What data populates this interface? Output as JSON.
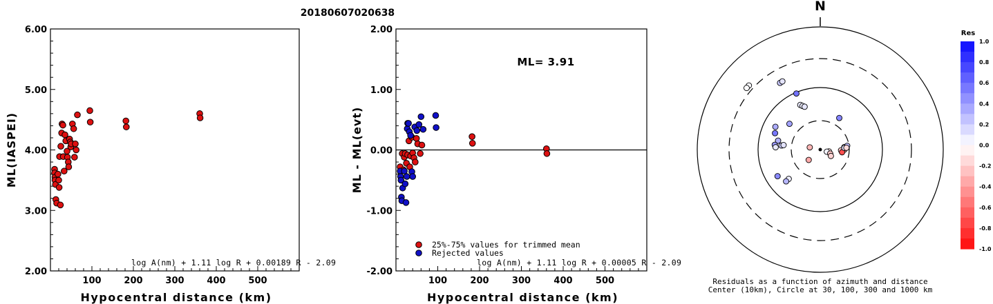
{
  "title": "20180607020638",
  "colors": {
    "red": "#dd1111",
    "blue": "#1010c8",
    "axis": "#000000"
  },
  "chart_data": [
    {
      "type": "scatter",
      "panel": "ml-vs-distance",
      "ylabel": "ML(IASPEI)",
      "xlabel": "Hypocentral distance (km)",
      "xlim": [
        0,
        600
      ],
      "ylim": [
        2.0,
        6.0
      ],
      "x_ticks": [
        "100",
        "200",
        "300",
        "400",
        "500"
      ],
      "y_ticks": [
        "2.00",
        "3.00",
        "4.00",
        "5.00",
        "6.00"
      ],
      "formula": "log A(nm) + 1.11 log R + 0.00189 R - 2.09",
      "series": [
        {
          "color": "red",
          "points": [
            [
              10,
              3.68
            ],
            [
              10,
              3.62
            ],
            [
              11,
              3.55
            ],
            [
              11,
              3.5
            ],
            [
              12,
              3.43
            ],
            [
              13,
              3.18
            ],
            [
              15,
              3.12
            ],
            [
              18,
              3.6
            ],
            [
              20,
              3.5
            ],
            [
              21,
              3.38
            ],
            [
              22,
              3.89
            ],
            [
              24,
              3.09
            ],
            [
              25,
              4.06
            ],
            [
              27,
              4.28
            ],
            [
              28,
              4.43
            ],
            [
              30,
              4.41
            ],
            [
              31,
              3.89
            ],
            [
              33,
              3.65
            ],
            [
              35,
              4.25
            ],
            [
              37,
              4.15
            ],
            [
              40,
              3.98
            ],
            [
              41,
              3.88
            ],
            [
              43,
              3.8
            ],
            [
              44,
              3.72
            ],
            [
              46,
              4.18
            ],
            [
              48,
              4.13
            ],
            [
              49,
              4.05
            ],
            [
              50,
              4.1
            ],
            [
              53,
              4.43
            ],
            [
              56,
              4.35
            ],
            [
              58,
              3.88
            ],
            [
              60,
              4.1
            ],
            [
              62,
              4.0
            ],
            [
              65,
              4.58
            ],
            [
              95,
              4.65
            ],
            [
              96,
              4.46
            ],
            [
              182,
              4.48
            ],
            [
              183,
              4.38
            ],
            [
              360,
              4.6
            ],
            [
              361,
              4.53
            ]
          ]
        }
      ]
    },
    {
      "type": "scatter",
      "panel": "residual-vs-distance",
      "ylabel": "ML - ML(evt)",
      "xlabel": "Hypocentral distance (km)",
      "xlim": [
        0,
        600
      ],
      "ylim": [
        -2.0,
        2.0
      ],
      "x_ticks": [
        "100",
        "200",
        "300",
        "400",
        "500"
      ],
      "y_ticks": [
        "-2.00",
        "-1.00",
        "0.00",
        "1.00",
        "2.00"
      ],
      "annotation": "ML= 3.91",
      "formula": "log A(nm) + 1.11 log R + 0.00005 R - 2.09",
      "legend": [
        "25%-75% values for trimmed mean",
        "Rejected values"
      ],
      "series": [
        {
          "name": "25%-75% values for trimmed mean",
          "color": "red",
          "points": [
            [
              10,
              -0.28
            ],
            [
              15,
              -0.06
            ],
            [
              18,
              -0.33
            ],
            [
              20,
              -0.12
            ],
            [
              22,
              -0.06
            ],
            [
              25,
              -0.22
            ],
            [
              28,
              -0.08
            ],
            [
              31,
              0.15
            ],
            [
              33,
              -0.28
            ],
            [
              35,
              -0.1
            ],
            [
              38,
              0.21
            ],
            [
              40,
              -0.05
            ],
            [
              43,
              -0.13
            ],
            [
              46,
              -0.2
            ],
            [
              49,
              0.19
            ],
            [
              52,
              0.1
            ],
            [
              58,
              -0.06
            ],
            [
              62,
              0.08
            ],
            [
              182,
              0.22
            ],
            [
              183,
              0.11
            ],
            [
              360,
              0.02
            ],
            [
              361,
              -0.06
            ]
          ]
        },
        {
          "name": "Rejected values",
          "color": "blue",
          "points": [
            [
              10,
              -0.35
            ],
            [
              11,
              -0.44
            ],
            [
              12,
              -0.5
            ],
            [
              13,
              -0.78
            ],
            [
              14,
              -0.84
            ],
            [
              16,
              -0.63
            ],
            [
              20,
              -0.35
            ],
            [
              22,
              -0.56
            ],
            [
              24,
              -0.87
            ],
            [
              26,
              -0.44
            ],
            [
              27,
              0.35
            ],
            [
              28,
              0.44
            ],
            [
              30,
              0.44
            ],
            [
              32,
              0.3
            ],
            [
              35,
              0.24
            ],
            [
              38,
              -0.36
            ],
            [
              40,
              -0.44
            ],
            [
              45,
              0.38
            ],
            [
              50,
              0.32
            ],
            [
              55,
              0.42
            ],
            [
              60,
              0.55
            ],
            [
              65,
              0.34
            ],
            [
              95,
              0.57
            ],
            [
              96,
              0.37
            ]
          ]
        }
      ]
    },
    {
      "type": "scatter",
      "panel": "azimuth-distance-map",
      "north_label": "N",
      "caption_line1": "Residuals as a function of azimuth and distance",
      "caption_line2": "Center (10km), Circle at 30, 100, 300 and 1000 km",
      "colorbar_title": "Res",
      "colorbar_ticks": [
        "1.0",
        "0.8",
        "0.6",
        "0.4",
        "0.2",
        "0.0",
        "-0.2",
        "-0.4",
        "-0.6",
        "-0.8",
        "-1.0"
      ],
      "rings_km": [
        30,
        100,
        300,
        1000
      ],
      "stations": [
        {
          "azimuth_deg": 312,
          "distance_km": 360,
          "res": 0.02
        },
        {
          "azimuth_deg": 310,
          "distance_km": 361,
          "res": 0.01
        },
        {
          "azimuth_deg": 329,
          "distance_km": 182,
          "res": 0.22
        },
        {
          "azimuth_deg": 331,
          "distance_km": 183,
          "res": 0.11
        },
        {
          "azimuth_deg": 337,
          "distance_km": 96,
          "res": 0.57
        },
        {
          "azimuth_deg": 336,
          "distance_km": 62,
          "res": 0.08
        },
        {
          "azimuth_deg": 338,
          "distance_km": 58,
          "res": 0.06
        },
        {
          "azimuth_deg": 340,
          "distance_km": 55,
          "res": 0.1
        },
        {
          "azimuth_deg": 310,
          "distance_km": 45,
          "res": 0.38
        },
        {
          "azimuth_deg": 297,
          "distance_km": 65,
          "res": 0.34
        },
        {
          "azimuth_deg": 290,
          "distance_km": 60,
          "res": 0.55
        },
        {
          "azimuth_deg": 282,
          "distance_km": 50,
          "res": 0.32
        },
        {
          "azimuth_deg": 276,
          "distance_km": 43,
          "res": 0.2
        },
        {
          "azimuth_deg": 277,
          "distance_km": 40,
          "res": 0.12
        },
        {
          "azimuth_deg": 276,
          "distance_km": 55,
          "res": 0.42
        },
        {
          "azimuth_deg": 273,
          "distance_km": 53,
          "res": 0.1
        },
        {
          "azimuth_deg": 238,
          "distance_km": 65,
          "res": 0.48
        },
        {
          "azimuth_deg": 227,
          "distance_km": 50,
          "res": 0.07
        },
        {
          "azimuth_deg": 227,
          "distance_km": 57,
          "res": 0.3
        },
        {
          "azimuth_deg": 31,
          "distance_km": 40,
          "res": 0.5
        },
        {
          "azimuth_deg": 282,
          "distance_km": 15,
          "res": -0.3
        },
        {
          "azimuth_deg": 228,
          "distance_km": 18,
          "res": -0.35
        },
        {
          "azimuth_deg": 102,
          "distance_km": 14,
          "res": -0.1
        },
        {
          "azimuth_deg": 108,
          "distance_km": 13,
          "res": 0.05
        },
        {
          "azimuth_deg": 112,
          "distance_km": 15,
          "res": -0.22
        },
        {
          "azimuth_deg": 121,
          "distance_km": 16,
          "res": -0.18
        },
        {
          "azimuth_deg": 92,
          "distance_km": 22,
          "res": -0.2
        },
        {
          "azimuth_deg": 90,
          "distance_km": 25,
          "res": -0.4
        },
        {
          "azimuth_deg": 97,
          "distance_km": 23,
          "res": -0.72
        },
        {
          "azimuth_deg": 84,
          "distance_km": 25,
          "res": -0.05
        },
        {
          "azimuth_deg": 86,
          "distance_km": 25,
          "res": 0.12
        },
        {
          "azimuth_deg": 82,
          "distance_km": 28,
          "res": 0.26
        },
        {
          "azimuth_deg": 86,
          "distance_km": 27,
          "res": -0.15
        }
      ]
    }
  ]
}
